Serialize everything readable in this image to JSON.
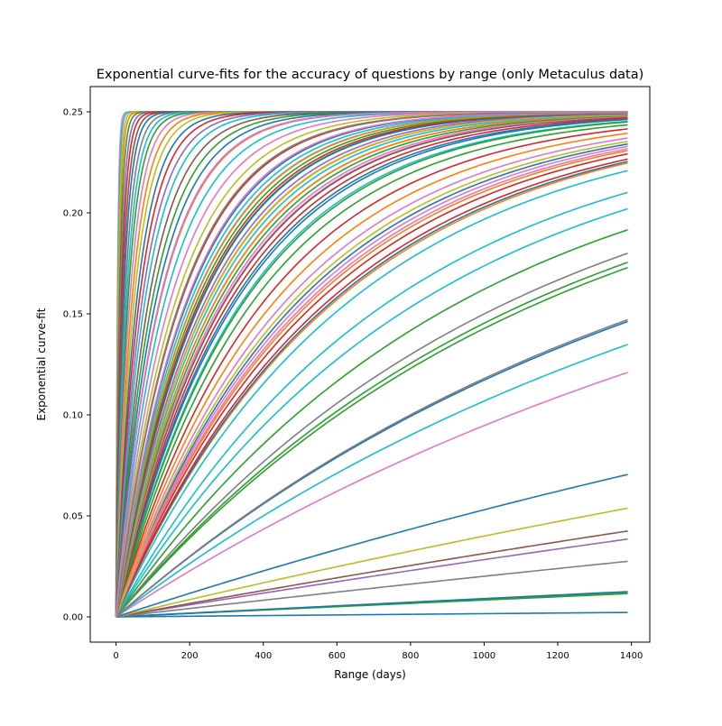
{
  "chart_data": {
    "type": "line",
    "title": "Exponential curve-fits for the accuracy of questions by range (only Metaculus data)",
    "xlabel": "Range (days)",
    "ylabel": "Exponential curve-fit",
    "xlim": [
      -70,
      1450
    ],
    "ylim": [
      -0.0125,
      0.2625
    ],
    "x_ticks": [
      0,
      200,
      400,
      600,
      800,
      1000,
      1200,
      1400
    ],
    "y_ticks": [
      0.0,
      0.05,
      0.1,
      0.15,
      0.2,
      0.25
    ],
    "y_tick_labels": [
      "0.00",
      "0.05",
      "0.10",
      "0.15",
      "0.20",
      "0.25"
    ],
    "grid": false,
    "legend": "none",
    "model": "y = 0.25 * (1 - exp(-x / tau))",
    "x_range": [
      0,
      1390
    ],
    "asymptote": 0.25,
    "palette": [
      "#1f77b4",
      "#ff7f0e",
      "#2ca02c",
      "#d62728",
      "#9467bd",
      "#8c564b",
      "#e377c2",
      "#7f7f7f",
      "#bcbd22",
      "#17becf"
    ],
    "series_y_at_1390": [
      0.0022,
      0.0115,
      0.0122,
      0.0125,
      0.0275,
      0.0385,
      0.0425,
      0.0538,
      0.0705,
      0.121,
      0.1348,
      0.1462,
      0.1471,
      0.1729,
      0.1755,
      0.18,
      0.1916,
      0.202,
      0.2101,
      0.2209,
      0.2247,
      0.2254,
      0.2266,
      0.2292,
      0.2308,
      0.2317,
      0.2329,
      0.2353,
      0.245,
      0.2462,
      0.247,
      0.2475,
      0.2478,
      0.2481,
      0.2484,
      0.2487,
      0.2489,
      0.2491,
      0.2493,
      0.2494,
      0.2495,
      0.2496,
      0.2497,
      0.2498,
      0.2499,
      0.2499,
      0.2499,
      0.25,
      0.25,
      0.25
    ],
    "series_colors": [
      "#1f77b4",
      "#2ca02c",
      "#2ca02c",
      "#1f77b4",
      "#7f7f7f",
      "#9467bd",
      "#8c564b",
      "#bcbd22",
      "#1f77b4",
      "#e377c2",
      "#17becf",
      "#1f77b4",
      "#7f7f7f",
      "#2ca02c",
      "#2ca02c",
      "#7f7f7f",
      "#2ca02c",
      "#17becf",
      "#17becf",
      "#17becf",
      "#ff7f0e",
      "#1f77b4",
      "#d62728",
      "#d62728",
      "#ff7f0e",
      "#e377c2",
      "#e377c2",
      "#bcbd22",
      "#2ca02c",
      "#1f77b4",
      "#d62728",
      "#8c564b",
      "#e377c2",
      "#2ca02c",
      "#ff7f0e",
      "#17becf",
      "#bcbd22",
      "#9467bd",
      "#1f77b4",
      "#d62728",
      "#2ca02c",
      "#ff7f0e",
      "#17becf",
      "#e377c2",
      "#8c564b",
      "#bcbd22",
      "#7f7f7f",
      "#9467bd",
      "#1f77b4",
      "#e377c2"
    ],
    "series_tau": [
      4.0,
      5.0,
      6.5,
      8.0,
      10.0,
      12.5,
      15.0,
      18.0,
      21.0,
      25.0,
      29.0,
      33.0,
      38.0,
      44.0,
      50.0,
      57.0,
      64.0,
      72.0,
      80.0,
      90.0,
      100.0,
      110.0,
      122.0,
      135.0,
      150.0,
      165.0,
      180.0,
      198.0,
      215.0,
      235.0,
      255.0,
      275.0,
      300.0,
      325.0,
      350.0,
      380.0,
      410.0,
      440.0,
      470.0,
      505.0
    ],
    "series_tau_colors": [
      "#e377c2",
      "#17becf",
      "#bcbd22",
      "#ff7f0e",
      "#2ca02c",
      "#9467bd",
      "#d62728",
      "#8c564b",
      "#1f77b4",
      "#7f7f7f",
      "#17becf",
      "#2ca02c",
      "#e377c2",
      "#ff7f0e",
      "#bcbd22",
      "#1f77b4",
      "#d62728",
      "#9467bd",
      "#17becf",
      "#8c564b",
      "#2ca02c",
      "#1f77b4",
      "#ff7f0e",
      "#17becf",
      "#e377c2",
      "#bcbd22",
      "#d62728",
      "#1f77b4",
      "#17becf",
      "#2ca02c",
      "#ff7f0e",
      "#8c564b",
      "#e377c2",
      "#1f77b4",
      "#17becf",
      "#2ca02c",
      "#d62728",
      "#ff7f0e",
      "#e377c2",
      "#1f77b4"
    ]
  }
}
